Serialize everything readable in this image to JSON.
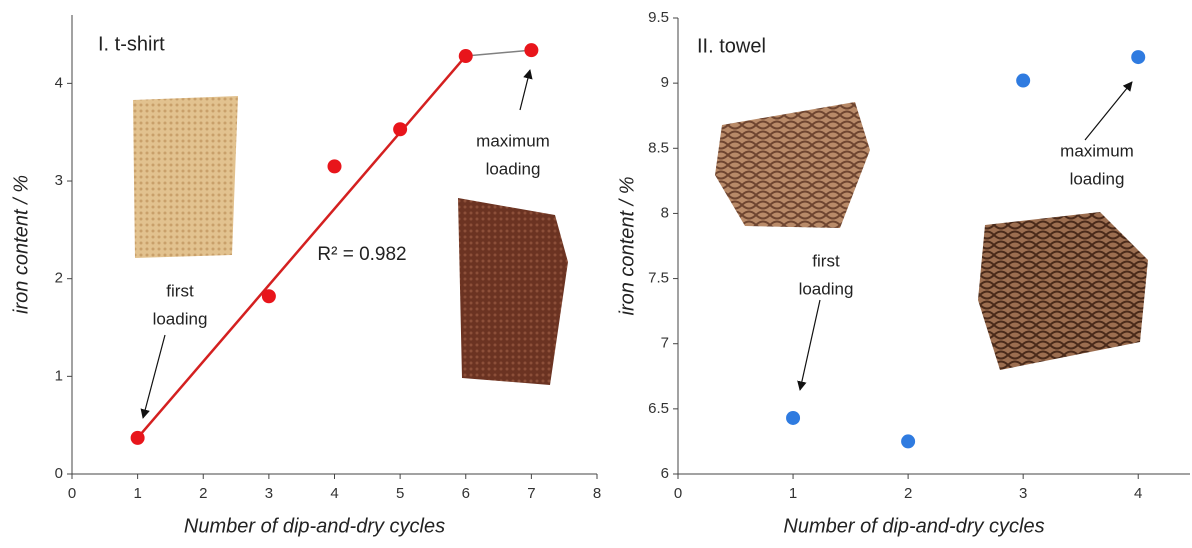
{
  "chart_data": [
    {
      "type": "scatter",
      "title": "I. t-shirt",
      "x_label": "Number of dip-and-dry cycles",
      "y_label": "iron content / %",
      "series": [
        {
          "color": "#e8151b",
          "x": [
            1,
            3,
            4,
            5,
            6,
            7
          ],
          "values": [
            0.37,
            1.82,
            3.15,
            3.53,
            4.28,
            4.34
          ]
        }
      ],
      "fit_color": "#d42020",
      "plateau_color": "#808080",
      "xlim": [
        0,
        8
      ],
      "xticks": [
        0,
        1,
        2,
        3,
        4,
        5,
        6,
        7,
        8
      ],
      "ylim": [
        0,
        4.7
      ],
      "yticks": [
        0,
        1,
        2,
        3,
        4
      ],
      "annotations": [
        {
          "lines": [
            "first",
            "loading"
          ]
        },
        {
          "lines": [
            "maximum",
            "loading"
          ]
        },
        {
          "lines": [
            "R² = 0.982"
          ],
          "color": "#d42020"
        }
      ]
    },
    {
      "type": "scatter",
      "title": "II. towel",
      "x_label": "Number of dip-and-dry cycles",
      "y_label": "iron content / %",
      "series": [
        {
          "color": "#2f7be0",
          "x": [
            1,
            2,
            3,
            4
          ],
          "values": [
            6.43,
            6.25,
            9.02,
            9.2
          ]
        }
      ],
      "xlim": [
        0,
        4.45
      ],
      "xticks": [
        0,
        1,
        2,
        3,
        4
      ],
      "ylim": [
        6,
        9.5
      ],
      "yticks": [
        6,
        6.5,
        7,
        7.5,
        8,
        8.5,
        9,
        9.5
      ],
      "annotations": [
        {
          "lines": [
            "first",
            "loading"
          ]
        },
        {
          "lines": [
            "maximum",
            "loading"
          ]
        }
      ]
    }
  ]
}
